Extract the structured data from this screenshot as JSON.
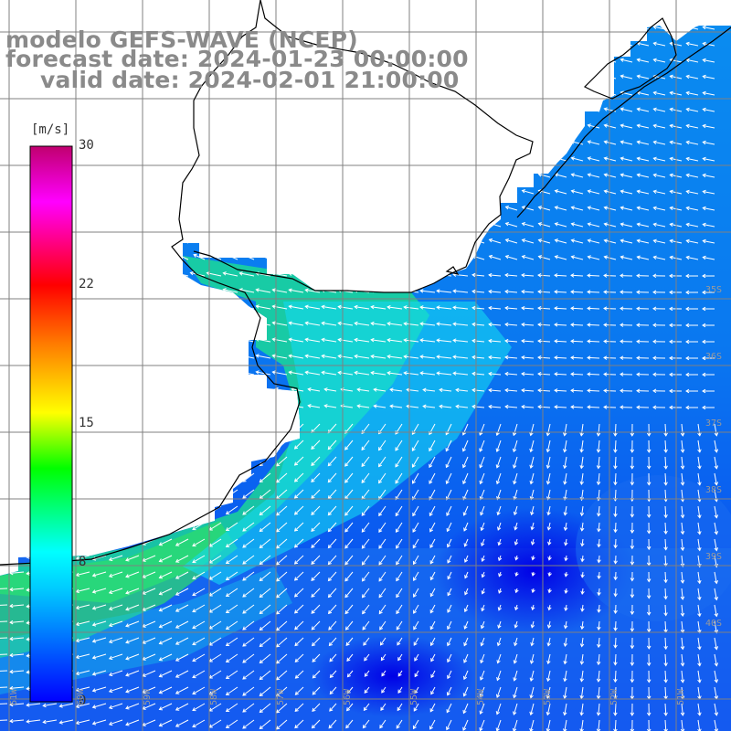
{
  "title": {
    "model": "modelo GEFS-WAVE (NCEP)",
    "forecast": "forecast date: 2024-01-23 00:00:00",
    "valid": "valid date: 2024-02-01 21:00:00"
  },
  "colorbar": {
    "unit": "[m/s]",
    "ticks": [
      "30",
      "22",
      "15",
      "8",
      "0"
    ],
    "stops": [
      "#0000ff",
      "#00c8ff",
      "#00ffff",
      "#00ff00",
      "#ffff00",
      "#ff8000",
      "#ff0000",
      "#ff00ff",
      "#c0006e"
    ]
  },
  "map": {
    "lat_labels": [
      "35S",
      "36S",
      "37S",
      "38S",
      "39S",
      "40S"
    ],
    "lon_labels": [
      "61W",
      "60W",
      "59W",
      "58W",
      "57W",
      "56W",
      "55W",
      "54W",
      "53W",
      "52W",
      "51W",
      "50W"
    ],
    "colors": {
      "land": "#ffffff",
      "coast": "#000000",
      "grid": "#808080",
      "arrow": "#ffffff"
    }
  }
}
